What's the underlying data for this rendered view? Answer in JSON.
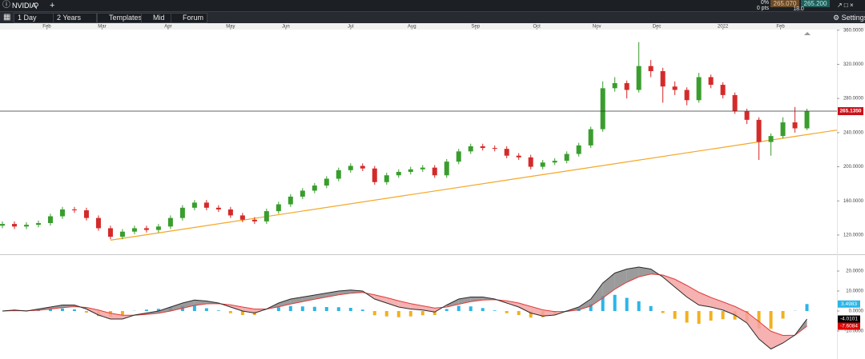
{
  "app": {
    "symbol": "NVIDIA",
    "change_pct": "0%",
    "change_pts": "0 pts",
    "bid": "265.070",
    "ask": "265.200",
    "spread": "18.0",
    "toolbar": {
      "interval": "1 Day",
      "range": "2 Years",
      "templates": "Templates",
      "price_mode": "Mid",
      "forum": "Forum",
      "settings": "Settings"
    }
  },
  "chart_data": [
    {
      "type": "candlestick",
      "open": [
        131,
        133,
        130,
        132,
        134,
        142,
        150,
        149,
        140,
        128,
        118,
        124,
        128,
        126,
        130,
        140,
        152,
        158,
        152,
        150,
        143,
        138,
        136,
        148,
        156,
        165,
        172,
        178,
        186,
        196,
        201,
        198,
        182,
        190,
        194,
        197,
        199,
        190,
        206,
        218,
        224,
        222,
        221,
        213,
        211,
        200,
        205,
        207,
        215,
        225,
        244,
        292,
        298,
        290,
        318,
        312,
        294,
        290,
        278,
        305,
        296,
        284,
        265,
        255,
        229,
        236,
        252,
        245
      ],
      "high": [
        136,
        136,
        135,
        137,
        145,
        153,
        153,
        152,
        143,
        131,
        127,
        131,
        131,
        133,
        143,
        155,
        161,
        161,
        155,
        153,
        146,
        141,
        151,
        159,
        168,
        175,
        181,
        189,
        199,
        204,
        204,
        201,
        193,
        197,
        200,
        202,
        202,
        209,
        221,
        227,
        227,
        225,
        224,
        216,
        214,
        208,
        210,
        218,
        228,
        247,
        300,
        305,
        301,
        346,
        325,
        316,
        300,
        293,
        310,
        308,
        299,
        287,
        268,
        258,
        239,
        258,
        270,
        268
      ],
      "low": [
        128,
        127,
        127,
        129,
        131,
        139,
        146,
        137,
        125,
        115,
        115,
        121,
        123,
        123,
        127,
        137,
        149,
        149,
        147,
        140,
        135,
        133,
        133,
        145,
        153,
        162,
        169,
        175,
        183,
        193,
        195,
        179,
        179,
        187,
        191,
        194,
        187,
        187,
        203,
        215,
        219,
        218,
        210,
        208,
        197,
        197,
        202,
        204,
        212,
        222,
        241,
        288,
        280,
        287,
        305,
        275,
        284,
        272,
        275,
        292,
        280,
        262,
        250,
        208,
        213,
        233,
        240,
        243
      ],
      "close": [
        133,
        130,
        132,
        134,
        142,
        150,
        149,
        140,
        128,
        118,
        124,
        128,
        126,
        130,
        140,
        152,
        158,
        152,
        150,
        143,
        138,
        136,
        148,
        156,
        165,
        172,
        178,
        186,
        196,
        201,
        198,
        182,
        190,
        194,
        197,
        199,
        190,
        206,
        218,
        224,
        222,
        221,
        213,
        211,
        200,
        205,
        207,
        215,
        225,
        244,
        292,
        298,
        290,
        318,
        312,
        294,
        290,
        278,
        305,
        296,
        284,
        265,
        255,
        229,
        236,
        252,
        245,
        265.135
      ],
      "up_color": "#3a9d2e",
      "down_color": "#d42a2a",
      "xlim": [
        -0.2,
        69.5
      ],
      "xticks": [
        {
          "value": 3.7,
          "label": "Feb"
        },
        {
          "value": 8.3,
          "label": "Mar"
        },
        {
          "value": 13.8,
          "label": "Apr"
        },
        {
          "value": 19,
          "label": "May"
        },
        {
          "value": 23.6,
          "label": "Jun"
        },
        {
          "value": 29,
          "label": "Jul"
        },
        {
          "value": 34.1,
          "label": "Aug"
        },
        {
          "value": 39.4,
          "label": "Sep"
        },
        {
          "value": 44.5,
          "label": "Oct"
        },
        {
          "value": 49.5,
          "label": "Nov"
        },
        {
          "value": 54.5,
          "label": "Dec"
        },
        {
          "value": 60,
          "label": "2022"
        },
        {
          "value": 64.8,
          "label": "Feb"
        }
      ],
      "ylim": [
        97.5,
        360.7
      ],
      "yticks": [
        {
          "value": 120,
          "label": "120.0000"
        },
        {
          "value": 160,
          "label": "160.0000"
        },
        {
          "value": 200,
          "label": "200.0000"
        },
        {
          "value": 240,
          "label": "240.0000"
        },
        {
          "value": 280,
          "label": "280.0000"
        },
        {
          "value": 320,
          "label": "320.0000"
        },
        {
          "value": 360,
          "label": "360.0000"
        }
      ],
      "trendline": {
        "x": [
          9,
          69.5
        ],
        "y": [
          114,
          243
        ],
        "color": "#f5a623"
      },
      "price_line": {
        "value": 265.135,
        "label": "265.1350",
        "color": "#c8101a"
      }
    },
    {
      "type": "macd",
      "macd": {
        "values": [
          0,
          0.5,
          0,
          1,
          2,
          3,
          3,
          1,
          -2,
          -4,
          -4,
          -2,
          -1,
          0,
          2,
          4,
          5.5,
          5,
          4,
          2,
          0,
          -1,
          1,
          4,
          6,
          7,
          8,
          9,
          10,
          10.5,
          10,
          6,
          4,
          2,
          1,
          0.5,
          -0.5,
          3,
          6,
          7,
          7,
          6,
          4,
          2,
          -1,
          -2.5,
          -2,
          0,
          2,
          6,
          14,
          19,
          21,
          22,
          21,
          17,
          12,
          7,
          3,
          2,
          0.5,
          -2,
          -6,
          -14,
          -19,
          -16,
          -12,
          -4.0101
        ],
        "color": "#2a2a2a",
        "label_color": "#000000"
      },
      "signal": {
        "values": [
          0,
          0.2,
          0.1,
          0.4,
          1,
          1.7,
          2.2,
          1.8,
          0.5,
          -1.1,
          -2.1,
          -2.1,
          -1.7,
          -1.1,
          0,
          1.4,
          2.8,
          3.6,
          3.7,
          3.1,
          2,
          1,
          1,
          2.1,
          3.5,
          4.7,
          5.9,
          7,
          8.1,
          8.9,
          9.3,
          8.1,
          6.7,
          5.1,
          3.7,
          2.6,
          1.5,
          2,
          3.4,
          4.7,
          5.5,
          5.7,
          5.1,
          4,
          2.3,
          0.6,
          -0.3,
          -0.2,
          0.6,
          2.5,
          6.5,
          10.9,
          14.4,
          17.1,
          18.5,
          18,
          15.9,
          12.8,
          9.4,
          6.8,
          4.6,
          2.3,
          -0.6,
          -5.3,
          -10.1,
          -12.2,
          -12.1,
          -7.6084
        ],
        "color": "#e03a3a",
        "label_color": "#e00000"
      },
      "histogram": {
        "values": [
          0,
          0.3,
          -0.1,
          0.6,
          1,
          1.3,
          0.8,
          -0.8,
          -2.5,
          -2.9,
          -1.9,
          0.1,
          0.7,
          1.1,
          2,
          2.6,
          2.7,
          1.4,
          0.3,
          -1.1,
          -2,
          -2,
          0,
          1.9,
          2.5,
          2.3,
          2.1,
          2,
          1.9,
          1.6,
          0.7,
          -2.1,
          -2.7,
          -3.1,
          -2.7,
          -2.1,
          -2,
          1,
          2.6,
          2.3,
          1.5,
          0.3,
          -1.1,
          -2,
          -3.3,
          -3.1,
          -1.7,
          0.2,
          1.4,
          3.5,
          7.5,
          8.1,
          6.6,
          4.9,
          2.5,
          -1,
          -3.9,
          -5.8,
          -6.4,
          -4.8,
          -4.1,
          -4.3,
          -5.4,
          -8.7,
          -8.9,
          -3.8,
          0.1,
          3.4983
        ],
        "up_color": "#2cb5e6",
        "down_color": "#f2b020"
      },
      "fill_up_color": "#8a8a8a",
      "fill_down_color": "#f4a3a3",
      "ylim": [
        -23.2,
        27.6
      ],
      "yticks": [
        {
          "value": 20,
          "label": "20.0000"
        },
        {
          "value": 10,
          "label": "10.0000"
        },
        {
          "value": 0,
          "label": "0.0000"
        },
        {
          "value": -10,
          "label": "-10.0000"
        }
      ]
    }
  ]
}
